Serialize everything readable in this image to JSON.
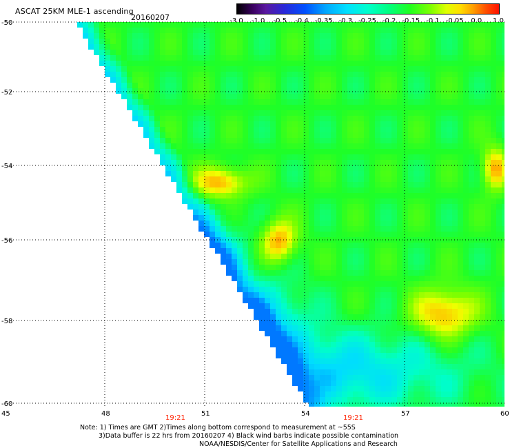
{
  "header": {
    "title": "ASCAT 25KM MLE-1 ascending",
    "date": "20160207"
  },
  "colorbar": {
    "labels": [
      "-3.0",
      "-1.0",
      "-0.5",
      "-0.4",
      "-0.35",
      "-0.3",
      "-0.25",
      "-0.2",
      "-0.15",
      "-0.1",
      "-0.05",
      "0.0",
      "1.0"
    ]
  },
  "axes": {
    "x_ticks": [
      "45",
      "48",
      "51",
      "54",
      "57",
      "60"
    ],
    "y_ticks": [
      "-50",
      "-52",
      "-54",
      "-56",
      "-58",
      "-60"
    ],
    "times": [
      "19:21",
      "19:21"
    ]
  },
  "colors": {
    "time_label": "#ff2000",
    "grid": "#000000"
  },
  "notes": {
    "line1": "Note: 1) Times are GMT 2)Times along bottom correspond to measurement at ~55S",
    "line2": "3)Data buffer is 22 hrs from 20160207 4) Black wind barbs indicate possible contamination",
    "line3": "NOAA/NESDIS/Center for Satellite Applications and Research"
  }
}
